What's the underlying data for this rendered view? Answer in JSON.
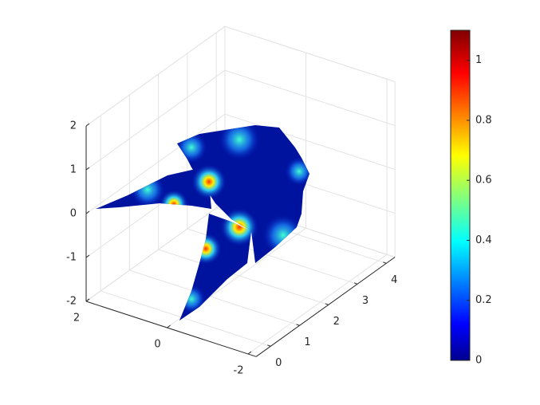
{
  "chart_data": {
    "type": "surface",
    "xlim": [
      -2.2,
      2
    ],
    "xticks": [
      -2,
      0,
      2
    ],
    "ylim": [
      -0.5,
      4.3
    ],
    "yticks": [
      0,
      1,
      2,
      3,
      4
    ],
    "zlim": [
      -2,
      2
    ],
    "zticks": [
      -2,
      -1,
      0,
      1,
      2
    ],
    "grid": true,
    "colorbar": {
      "colormap": "jet",
      "clim": [
        0,
        1.1
      ],
      "ticks": [
        0,
        0.2,
        0.4,
        0.6,
        0.8,
        1
      ]
    }
  }
}
